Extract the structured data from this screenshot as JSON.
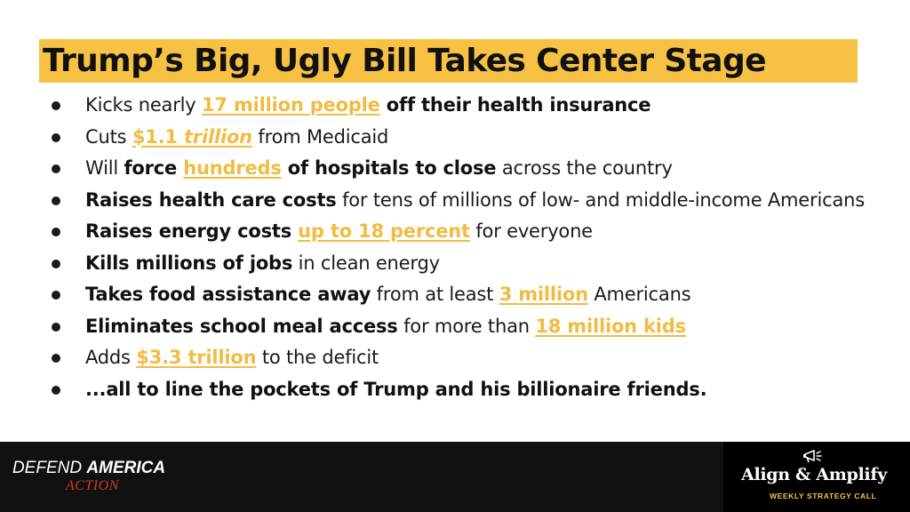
{
  "title": "Trump’s Big, Ugly Bill Takes Center Stage",
  "bullets": [
    [
      "Kicks nearly ",
      "17 million people",
      " off their health insurance"
    ],
    [
      "Cuts ",
      "$1.1 ",
      "trillion",
      " from Medicaid"
    ],
    [
      "Will ",
      "force ",
      "hundreds",
      " of hospitals to close",
      " across the country"
    ],
    [
      "Raises health care costs",
      " for tens of millions of low- and middle-income Americans"
    ],
    [
      "Raises energy costs ",
      "up to 18 percent",
      " for everyone"
    ],
    [
      "Kills millions of jobs",
      " in clean energy"
    ],
    [
      "Takes food assistance away",
      " from at least ",
      "3 million",
      " Americans"
    ],
    [
      "Eliminates school meal access",
      " for more than ",
      "18 million kids"
    ],
    [
      "Adds ",
      "$3.3 trillion",
      " to the deficit"
    ],
    [
      "...all to line the pockets of Trump and his billionaire friends."
    ]
  ],
  "footer": {
    "left_logo": {
      "part1": "DEFEND ",
      "part2": "AMERICA",
      "line2": "ACTION"
    },
    "right_logo": {
      "title": "Align & Amplify",
      "subtitle": "WEEKLY STRATEGY CALL",
      "icon": "megaphone-icon"
    }
  },
  "colors": {
    "accent": "#f7c244",
    "text": "#1a1a1a",
    "footer_bg": "#111111",
    "action_red": "#d23a2a"
  }
}
